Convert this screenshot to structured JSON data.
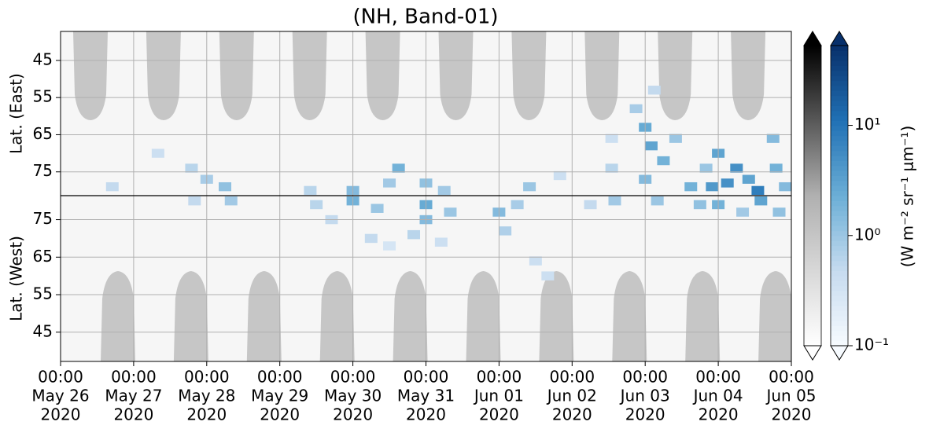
{
  "chart_data": {
    "type": "heatmap",
    "title": "(NH, Band-01)",
    "xlim": [
      "2020-05-26 00:00",
      "2020-06-05 00:00"
    ],
    "xticks": [
      {
        "value": "2020-05-26 00:00",
        "label": [
          "00:00",
          "May 26",
          "2020"
        ]
      },
      {
        "value": "2020-05-27 00:00",
        "label": [
          "00:00",
          "May 27",
          "2020"
        ]
      },
      {
        "value": "2020-05-28 00:00",
        "label": [
          "00:00",
          "May 28",
          "2020"
        ]
      },
      {
        "value": "2020-05-29 00:00",
        "label": [
          "00:00",
          "May 29",
          "2020"
        ]
      },
      {
        "value": "2020-05-30 00:00",
        "label": [
          "00:00",
          "May 30",
          "2020"
        ]
      },
      {
        "value": "2020-05-31 00:00",
        "label": [
          "00:00",
          "May 31",
          "2020"
        ]
      },
      {
        "value": "2020-06-01 00:00",
        "label": [
          "00:00",
          "Jun 01",
          "2020"
        ]
      },
      {
        "value": "2020-06-02 00:00",
        "label": [
          "00:00",
          "Jun 02",
          "2020"
        ]
      },
      {
        "value": "2020-06-03 00:00",
        "label": [
          "00:00",
          "Jun 03",
          "2020"
        ]
      },
      {
        "value": "2020-06-04 00:00",
        "label": [
          "00:00",
          "Jun 04",
          "2020"
        ]
      },
      {
        "value": "2020-06-05 00:00",
        "label": [
          "00:00",
          "Jun 05",
          "2020"
        ]
      }
    ],
    "grid": true,
    "panels": [
      {
        "ylabel": "Lat. (East)",
        "ylim": [
          37.2,
          81.4
        ],
        "yticks": [
          45,
          55,
          65,
          75
        ],
        "x": [
          "2020-05-26 17:00",
          "2020-05-27 19:00",
          "2020-05-27 08:00",
          "2020-05-28 00:00",
          "2020-05-28 06:00",
          "2020-05-29 10:00",
          "2020-05-30 00:00",
          "2020-05-30 12:00",
          "2020-05-30 15:00",
          "2020-05-31 00:00",
          "2020-05-31 06:00",
          "2020-06-01 10:00",
          "2020-06-01 20:00",
          "2020-06-02 13:00",
          "2020-06-02 13:00",
          "2020-06-03 00:00",
          "2020-06-03 02:00",
          "2020-06-03 06:00",
          "2020-06-03 00:00",
          "2020-06-03 10:00",
          "2020-06-02 21:00",
          "2020-06-03 03:00",
          "2020-06-03 15:00",
          "2020-06-03 20:00",
          "2020-06-04 00:00",
          "2020-06-04 06:00",
          "2020-06-04 10:00",
          "2020-06-03 22:00",
          "2020-06-04 03:00",
          "2020-06-04 13:00",
          "2020-06-04 19:00",
          "2020-06-04 18:00",
          "2020-06-04 22:00"
        ],
        "y": [
          79,
          74,
          70,
          77,
          79,
          80,
          80,
          78,
          74,
          78,
          80,
          79,
          76,
          74,
          66,
          63,
          68,
          72,
          77,
          66,
          58,
          53,
          79,
          74,
          70,
          74,
          77,
          79,
          78,
          80,
          74,
          66,
          79
        ],
        "values": [
          0.5,
          0.6,
          0.4,
          0.8,
          1.2,
          0.6,
          1.5,
          0.9,
          2.0,
          1.2,
          0.9,
          1.0,
          0.4,
          0.6,
          0.4,
          2.5,
          3.0,
          2.0,
          1.5,
          1.0,
          0.8,
          0.5,
          2.0,
          1.0,
          3.0,
          5.0,
          3.0,
          4.0,
          5.0,
          8.0,
          2.0,
          1.5,
          1.5
        ]
      },
      {
        "ylabel": "Lat. (West)",
        "ylim": [
          37.2,
          81.4
        ],
        "yticks": [
          75,
          65,
          55,
          45
        ],
        "x": [
          "2020-05-27 20:00",
          "2020-05-28 08:00",
          "2020-05-29 12:00",
          "2020-05-29 17:00",
          "2020-05-30 00:00",
          "2020-05-30 08:00",
          "2020-05-30 06:00",
          "2020-05-30 12:00",
          "2020-05-31 00:00",
          "2020-05-31 00:00",
          "2020-05-30 20:00",
          "2020-05-31 05:00",
          "2020-05-31 08:00",
          "2020-06-01 00:00",
          "2020-06-01 06:00",
          "2020-06-01 02:00",
          "2020-06-01 12:00",
          "2020-06-01 16:00",
          "2020-06-02 06:00",
          "2020-06-02 14:00",
          "2020-06-03 04:00",
          "2020-06-03 18:00",
          "2020-06-04 00:00",
          "2020-06-04 08:00",
          "2020-06-04 14:00",
          "2020-06-04 20:00"
        ],
        "y": [
          80,
          80,
          79,
          75,
          80,
          78,
          70,
          68,
          79,
          75,
          71,
          69,
          77,
          77,
          79,
          72,
          64,
          60,
          79,
          80,
          80,
          79,
          79,
          77,
          80,
          77
        ],
        "values": [
          0.5,
          0.9,
          0.6,
          0.5,
          2.0,
          1.0,
          0.5,
          0.3,
          2.5,
          1.5,
          0.6,
          0.4,
          1.0,
          1.5,
          0.8,
          0.7,
          0.4,
          0.4,
          0.5,
          0.9,
          1.0,
          1.2,
          2.0,
          0.9,
          3.0,
          1.2
        ]
      }
    ],
    "colorbar": {
      "label": "(W m⁻² sr⁻¹ μm⁻¹)",
      "log": true,
      "lim": [
        0.1,
        53
      ],
      "ticks": [
        {
          "value": 0.1,
          "label": "10⁻¹"
        },
        {
          "value": 1,
          "label": "10⁰"
        },
        {
          "value": 10,
          "label": "10¹"
        }
      ],
      "colors": [
        "#f7fbff",
        "#c6dbef",
        "#6baed6",
        "#2171b5",
        "#08306b"
      ]
    }
  }
}
